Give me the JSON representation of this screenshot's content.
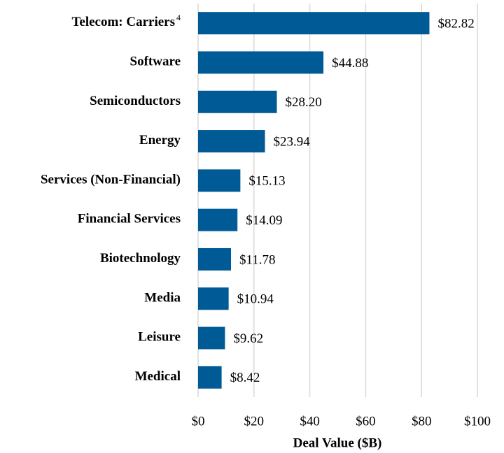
{
  "chart_data": {
    "type": "bar",
    "orientation": "horizontal",
    "xlabel": "Deal Value ($B)",
    "categories": [
      "Telecom: Carriers",
      "Software",
      "Semiconductors",
      "Energy",
      "Services (Non-Financial)",
      "Financial Services",
      "Biotechnology",
      "Media",
      "Leisure",
      "Medical"
    ],
    "category_footnotes": [
      "4",
      null,
      null,
      null,
      null,
      null,
      null,
      null,
      null,
      null
    ],
    "values": [
      82.82,
      44.88,
      28.2,
      23.94,
      15.13,
      14.09,
      11.78,
      10.94,
      9.62,
      8.42
    ],
    "value_labels": [
      "$82.82",
      "$44.88",
      "$28.20",
      "$23.94",
      "$15.13",
      "$14.09",
      "$11.78",
      "$10.94",
      "$9.62",
      "$8.42"
    ],
    "color": "#005a96",
    "xlim": [
      0,
      100
    ],
    "xticks": [
      {
        "value": 0,
        "label": "$0"
      },
      {
        "value": 20,
        "label": "$20"
      },
      {
        "value": 40,
        "label": "$40"
      },
      {
        "value": 60,
        "label": "$60"
      },
      {
        "value": 80,
        "label": "$80"
      },
      {
        "value": 100,
        "label": "$100"
      }
    ],
    "grid": true
  }
}
